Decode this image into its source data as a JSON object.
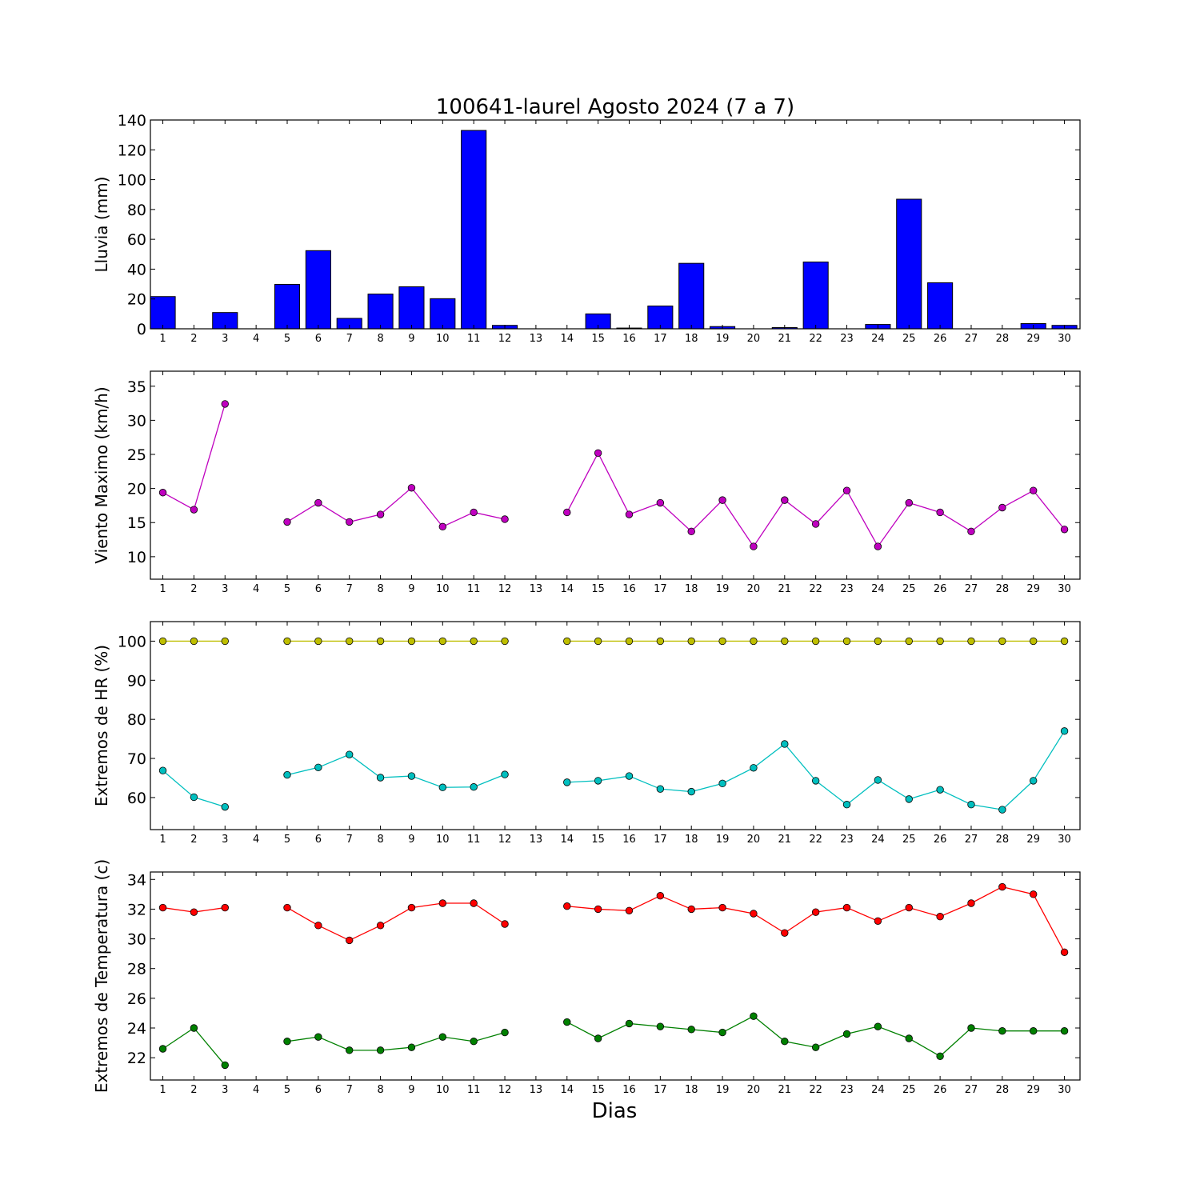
{
  "title": "100641-laurel Agosto 2024  (7 a 7)",
  "xlabel": "Dias",
  "chart_data": [
    {
      "type": "bar",
      "ylabel": "Lluvia (mm)",
      "ylim": [
        0,
        140
      ],
      "yticks": [
        0,
        20,
        40,
        60,
        80,
        100,
        120,
        140
      ],
      "xlim": [
        0.6,
        30.5
      ],
      "categories": [
        1,
        2,
        3,
        4,
        5,
        6,
        7,
        8,
        9,
        10,
        11,
        12,
        13,
        14,
        15,
        16,
        17,
        18,
        19,
        20,
        21,
        22,
        23,
        24,
        25,
        26,
        27,
        28,
        29,
        30
      ],
      "series": [
        {
          "color": "#0000ff",
          "values": [
            21.6,
            0,
            10.9,
            0,
            29.8,
            52.4,
            7.0,
            23.3,
            28.2,
            20.2,
            133.0,
            2.3,
            0,
            0,
            10.0,
            0.5,
            15.3,
            43.9,
            1.5,
            0,
            0.8,
            44.8,
            0,
            2.9,
            86.9,
            30.9,
            0,
            0,
            3.5,
            2.3
          ]
        }
      ]
    },
    {
      "type": "line",
      "ylabel": "Viento Maximo (km/h)",
      "ylim": [
        6.7,
        37.2
      ],
      "yticks": [
        10,
        15,
        20,
        25,
        30,
        35
      ],
      "xlim": [
        0.6,
        30.5
      ],
      "x": [
        1,
        2,
        3,
        4,
        5,
        6,
        7,
        8,
        9,
        10,
        11,
        12,
        13,
        14,
        15,
        16,
        17,
        18,
        19,
        20,
        21,
        22,
        23,
        24,
        25,
        26,
        27,
        28,
        29,
        30
      ],
      "series": [
        {
          "color": "#bf00bf",
          "values": [
            19.4,
            16.9,
            32.4,
            null,
            15.1,
            17.9,
            15.1,
            16.2,
            20.1,
            14.4,
            16.5,
            15.5,
            null,
            16.5,
            25.2,
            16.2,
            17.9,
            13.7,
            18.3,
            11.5,
            18.3,
            14.8,
            19.7,
            11.5,
            17.9,
            16.5,
            13.7,
            17.2,
            19.7,
            14.0
          ]
        }
      ]
    },
    {
      "type": "line",
      "ylabel": "Extremos de HR (%)",
      "ylim": [
        51.8,
        105.0
      ],
      "yticks": [
        60,
        70,
        80,
        90,
        100
      ],
      "xlim": [
        0.6,
        30.5
      ],
      "x": [
        1,
        2,
        3,
        4,
        5,
        6,
        7,
        8,
        9,
        10,
        11,
        12,
        13,
        14,
        15,
        16,
        17,
        18,
        19,
        20,
        21,
        22,
        23,
        24,
        25,
        26,
        27,
        28,
        29,
        30
      ],
      "series": [
        {
          "color": "#bfbf00",
          "values": [
            100,
            100,
            100,
            null,
            100,
            100,
            100,
            100,
            100,
            100,
            100,
            100,
            null,
            100,
            100,
            100,
            100,
            100,
            100,
            100,
            100,
            100,
            100,
            100,
            100,
            100,
            100,
            100,
            100,
            100
          ]
        },
        {
          "color": "#00bfbf",
          "values": [
            66.9,
            60.1,
            57.6,
            null,
            65.8,
            67.7,
            71.0,
            65.1,
            65.5,
            62.6,
            62.7,
            65.9,
            null,
            63.9,
            64.3,
            65.5,
            62.2,
            61.5,
            63.6,
            67.6,
            73.7,
            64.3,
            58.2,
            64.5,
            59.6,
            62.0,
            58.2,
            56.9,
            64.3,
            77.0
          ]
        }
      ]
    },
    {
      "type": "line",
      "ylabel": "Extremos de Temperatura (c)",
      "ylim": [
        20.5,
        34.5
      ],
      "yticks": [
        22,
        24,
        26,
        28,
        30,
        32,
        34
      ],
      "xlim": [
        0.6,
        30.5
      ],
      "x": [
        1,
        2,
        3,
        4,
        5,
        6,
        7,
        8,
        9,
        10,
        11,
        12,
        13,
        14,
        15,
        16,
        17,
        18,
        19,
        20,
        21,
        22,
        23,
        24,
        25,
        26,
        27,
        28,
        29,
        30
      ],
      "series": [
        {
          "color": "#ff0000",
          "values": [
            32.1,
            31.8,
            32.1,
            null,
            32.1,
            30.9,
            29.9,
            30.9,
            32.1,
            32.4,
            32.4,
            31.0,
            null,
            32.2,
            32.0,
            31.9,
            32.9,
            32.0,
            32.1,
            31.7,
            30.4,
            31.8,
            32.1,
            31.2,
            32.1,
            31.5,
            32.4,
            33.5,
            33.0,
            29.1
          ]
        },
        {
          "color": "#008000",
          "values": [
            22.6,
            24.0,
            21.5,
            null,
            23.1,
            23.4,
            22.5,
            22.5,
            22.7,
            23.4,
            23.1,
            23.7,
            null,
            24.4,
            23.3,
            24.3,
            24.1,
            23.9,
            23.7,
            24.8,
            23.1,
            22.7,
            23.6,
            24.1,
            23.3,
            22.1,
            24.0,
            23.8,
            23.8,
            23.8
          ]
        }
      ]
    }
  ]
}
